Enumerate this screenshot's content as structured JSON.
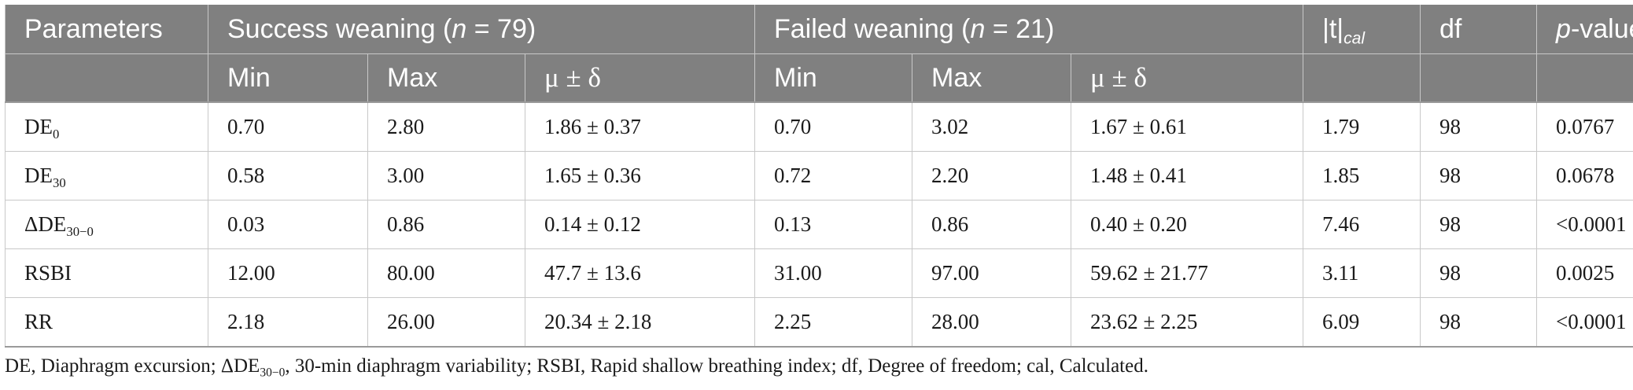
{
  "header": {
    "parameters": "Parameters",
    "success_prefix": "Success weaning (",
    "success_n": "n",
    "success_suffix": " = 79)",
    "failed_prefix": "Failed weaning (",
    "failed_n": "n",
    "failed_suffix": " = 21)",
    "t_main": "|t|",
    "t_sub": "cal",
    "df": "df",
    "p_italic": "p",
    "p_rest": "-value",
    "min": "Min",
    "max": "Max",
    "mu": "μ ± δ"
  },
  "rows": [
    {
      "param": "DE",
      "param_sub": "0",
      "s_min": "0.70",
      "s_max": "2.80",
      "s_mu": "1.86 ± 0.37",
      "f_min": "0.70",
      "f_max": "3.02",
      "f_mu": "1.67 ± 0.61",
      "t": "1.79",
      "df": "98",
      "p": "0.0767"
    },
    {
      "param": "DE",
      "param_sub": "30",
      "s_min": "0.58",
      "s_max": "3.00",
      "s_mu": "1.65 ± 0.36",
      "f_min": "0.72",
      "f_max": "2.20",
      "f_mu": "1.48 ± 0.41",
      "t": "1.85",
      "df": "98",
      "p": "0.0678"
    },
    {
      "param": "ΔDE",
      "param_sub": "30−0",
      "s_min": "0.03",
      "s_max": "0.86",
      "s_mu": "0.14 ± 0.12",
      "f_min": "0.13",
      "f_max": "0.86",
      "f_mu": "0.40 ± 0.20",
      "t": "7.46",
      "df": "98",
      "p": "<0.0001"
    },
    {
      "param": "RSBI",
      "param_sub": "",
      "s_min": "12.00",
      "s_max": "80.00",
      "s_mu": "47.7 ± 13.6",
      "f_min": "31.00",
      "f_max": "97.00",
      "f_mu": "59.62 ± 21.77",
      "t": "3.11",
      "df": "98",
      "p": "0.0025"
    },
    {
      "param": "RR",
      "param_sub": "",
      "s_min": "2.18",
      "s_max": "26.00",
      "s_mu": "20.34 ± 2.18",
      "f_min": "2.25",
      "f_max": "28.00",
      "f_mu": "23.62 ± 2.25",
      "t": "6.09",
      "df": "98",
      "p": "<0.0001"
    }
  ],
  "footnote": {
    "part1": "DE, Diaphragm excursion; ΔDE",
    "sub": "30−0",
    "part2": ", 30-min diaphragm variability; RSBI, Rapid shallow breathing index; df, Degree of freedom; cal, Calculated."
  }
}
